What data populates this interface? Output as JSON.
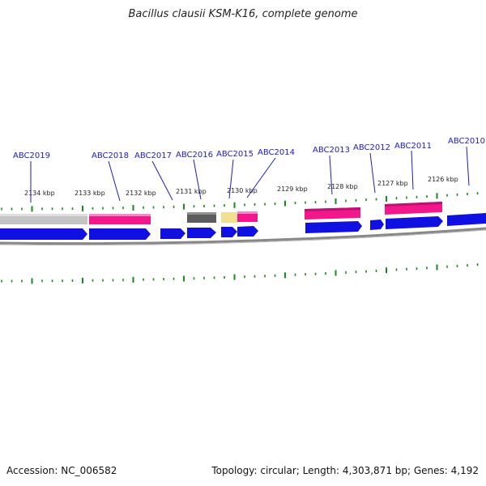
{
  "title": "Bacillus clausii KSM-K16, complete genome",
  "footer": {
    "accession": "Accession: NC_006582",
    "summary": "Topology: circular; Length: 4,303,871 bp; Genes: 4,192"
  },
  "colors": {
    "cds": "#1010e0",
    "pink": "#f0188a",
    "grey": "#c0c0c0",
    "darkgrey": "#606060",
    "yellow": "#f0e090",
    "tick": "#1a8a1a",
    "label": "#1a1ad0"
  },
  "kbp_labels": [
    "2134 kbp",
    "2133 kbp",
    "2132 kbp",
    "2131 kbp",
    "2130 kbp",
    "2129 kbp",
    "2128 kbp",
    "2127 kbp",
    "2126 kbp"
  ],
  "gene_labels": [
    "ABC2019",
    "ABC2018",
    "ABC2017",
    "ABC2016",
    "ABC2015",
    "ABC2014",
    "ABC2013",
    "ABC2012",
    "ABC2011",
    "ABC2010"
  ]
}
